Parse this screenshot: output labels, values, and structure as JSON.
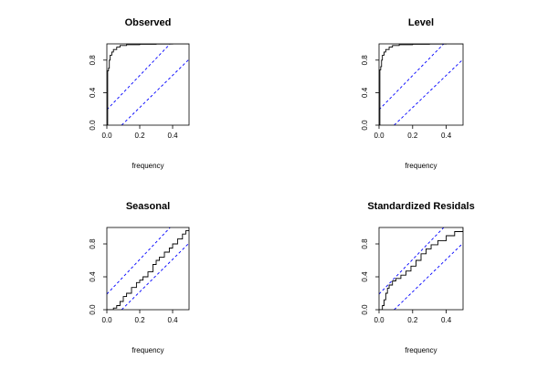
{
  "figure": {
    "type": "cumulative-periodogram-grid",
    "background": "#ffffff",
    "line_color": "#000000",
    "band_color": "#0000ff"
  },
  "chart_data": [
    {
      "type": "line",
      "title": "Observed",
      "xlabel": "frequency",
      "ylabel": "",
      "xlim": [
        0,
        0.5
      ],
      "ylim": [
        0,
        1
      ],
      "xticks": [
        0.0,
        0.2,
        0.4
      ],
      "xtick_labels": [
        "0.0",
        "0.2",
        "0.4"
      ],
      "yticks": [
        0.0,
        0.4,
        0.8
      ],
      "ytick_labels": [
        "0.0",
        "0.4",
        "0.8"
      ],
      "confidence_bands": [
        {
          "x": [
            0.0,
            0.385
          ],
          "y": [
            0.19,
            1.0
          ]
        },
        {
          "x": [
            0.09,
            0.5
          ],
          "y": [
            0.0,
            0.81
          ]
        }
      ],
      "series": [
        {
          "x": [
            0.0,
            0.005,
            0.005,
            0.01,
            0.01,
            0.015,
            0.015,
            0.02,
            0.02,
            0.03,
            0.04,
            0.06,
            0.08,
            0.12,
            0.2,
            0.3,
            0.4,
            0.5
          ],
          "y": [
            0.0,
            0.0,
            0.67,
            0.67,
            0.7,
            0.7,
            0.8,
            0.8,
            0.86,
            0.9,
            0.93,
            0.96,
            0.98,
            0.99,
            0.995,
            0.998,
            0.999,
            1.0
          ]
        }
      ]
    },
    {
      "type": "line",
      "title": "Level",
      "xlabel": "frequency",
      "ylabel": "",
      "xlim": [
        0,
        0.5
      ],
      "ylim": [
        0,
        1
      ],
      "xticks": [
        0.0,
        0.2,
        0.4
      ],
      "xtick_labels": [
        "0.0",
        "0.2",
        "0.4"
      ],
      "yticks": [
        0.0,
        0.4,
        0.8
      ],
      "ytick_labels": [
        "0.0",
        "0.4",
        "0.8"
      ],
      "confidence_bands": [
        {
          "x": [
            0.0,
            0.385
          ],
          "y": [
            0.19,
            1.0
          ]
        },
        {
          "x": [
            0.09,
            0.5
          ],
          "y": [
            0.0,
            0.81
          ]
        }
      ],
      "series": [
        {
          "x": [
            0.0,
            0.005,
            0.005,
            0.01,
            0.01,
            0.015,
            0.015,
            0.02,
            0.02,
            0.03,
            0.04,
            0.06,
            0.08,
            0.12,
            0.2,
            0.3,
            0.4,
            0.5
          ],
          "y": [
            0.0,
            0.0,
            0.68,
            0.68,
            0.72,
            0.72,
            0.8,
            0.8,
            0.86,
            0.9,
            0.93,
            0.96,
            0.98,
            0.99,
            0.995,
            0.998,
            0.999,
            1.0
          ]
        }
      ]
    },
    {
      "type": "line",
      "title": "Seasonal",
      "xlabel": "frequency",
      "ylabel": "",
      "xlim": [
        0,
        0.5
      ],
      "ylim": [
        0,
        1
      ],
      "xticks": [
        0.0,
        0.2,
        0.4
      ],
      "xtick_labels": [
        "0.0",
        "0.2",
        "0.4"
      ],
      "yticks": [
        0.0,
        0.4,
        0.8
      ],
      "ytick_labels": [
        "0.0",
        "0.4",
        "0.8"
      ],
      "confidence_bands": [
        {
          "x": [
            0.0,
            0.385
          ],
          "y": [
            0.19,
            1.0
          ]
        },
        {
          "x": [
            0.09,
            0.5
          ],
          "y": [
            0.0,
            0.81
          ]
        }
      ],
      "series": [
        {
          "x": [
            0.0,
            0.04,
            0.06,
            0.08,
            0.1,
            0.12,
            0.15,
            0.18,
            0.2,
            0.22,
            0.25,
            0.28,
            0.3,
            0.32,
            0.35,
            0.38,
            0.4,
            0.43,
            0.46,
            0.48,
            0.5
          ],
          "y": [
            0.0,
            0.02,
            0.05,
            0.1,
            0.16,
            0.2,
            0.27,
            0.33,
            0.36,
            0.4,
            0.46,
            0.55,
            0.6,
            0.64,
            0.7,
            0.75,
            0.8,
            0.86,
            0.92,
            0.96,
            1.0
          ]
        }
      ]
    },
    {
      "type": "line",
      "title": "Standardized Residals",
      "xlabel": "frequency",
      "ylabel": "",
      "xlim": [
        0,
        0.5
      ],
      "ylim": [
        0,
        1
      ],
      "xticks": [
        0.0,
        0.2,
        0.4
      ],
      "xtick_labels": [
        "0.0",
        "0.2",
        "0.4"
      ],
      "yticks": [
        0.0,
        0.4,
        0.8
      ],
      "ytick_labels": [
        "0.0",
        "0.4",
        "0.8"
      ],
      "confidence_bands": [
        {
          "x": [
            0.0,
            0.385
          ],
          "y": [
            0.19,
            1.0
          ]
        },
        {
          "x": [
            0.09,
            0.5
          ],
          "y": [
            0.0,
            0.81
          ]
        }
      ],
      "series": [
        {
          "x": [
            0.0,
            0.02,
            0.03,
            0.04,
            0.05,
            0.06,
            0.08,
            0.1,
            0.13,
            0.16,
            0.19,
            0.22,
            0.25,
            0.28,
            0.31,
            0.35,
            0.4,
            0.45,
            0.5
          ],
          "y": [
            0.0,
            0.05,
            0.12,
            0.2,
            0.26,
            0.3,
            0.35,
            0.38,
            0.42,
            0.47,
            0.53,
            0.6,
            0.68,
            0.74,
            0.79,
            0.84,
            0.9,
            0.95,
            1.0
          ]
        }
      ]
    }
  ]
}
